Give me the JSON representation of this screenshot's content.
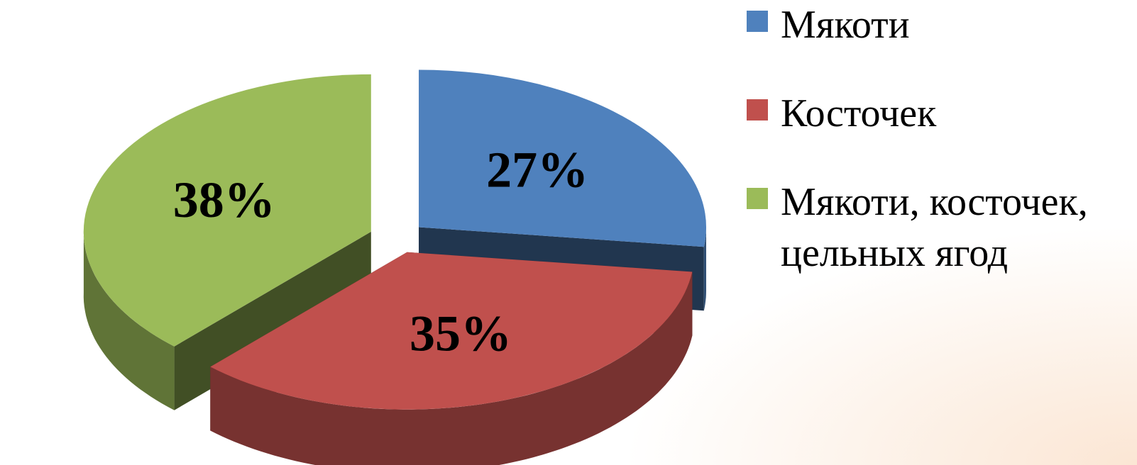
{
  "chart_data": {
    "type": "pie",
    "style": "3d-exploded",
    "categories": [
      "Мякоти",
      "Косточек",
      "Мякоти, косточек, цельных ягод"
    ],
    "values": [
      27,
      35,
      38
    ],
    "value_labels": [
      "27%",
      "35%",
      "38%"
    ],
    "colors": [
      "#4f81bd",
      "#c0504d",
      "#9bbb59"
    ],
    "legend_lines": [
      [
        "Мякоти"
      ],
      [
        "Косточек"
      ],
      [
        "Мякоти, косточек,",
        "цельных ягод"
      ]
    ],
    "legend_position": "right"
  }
}
